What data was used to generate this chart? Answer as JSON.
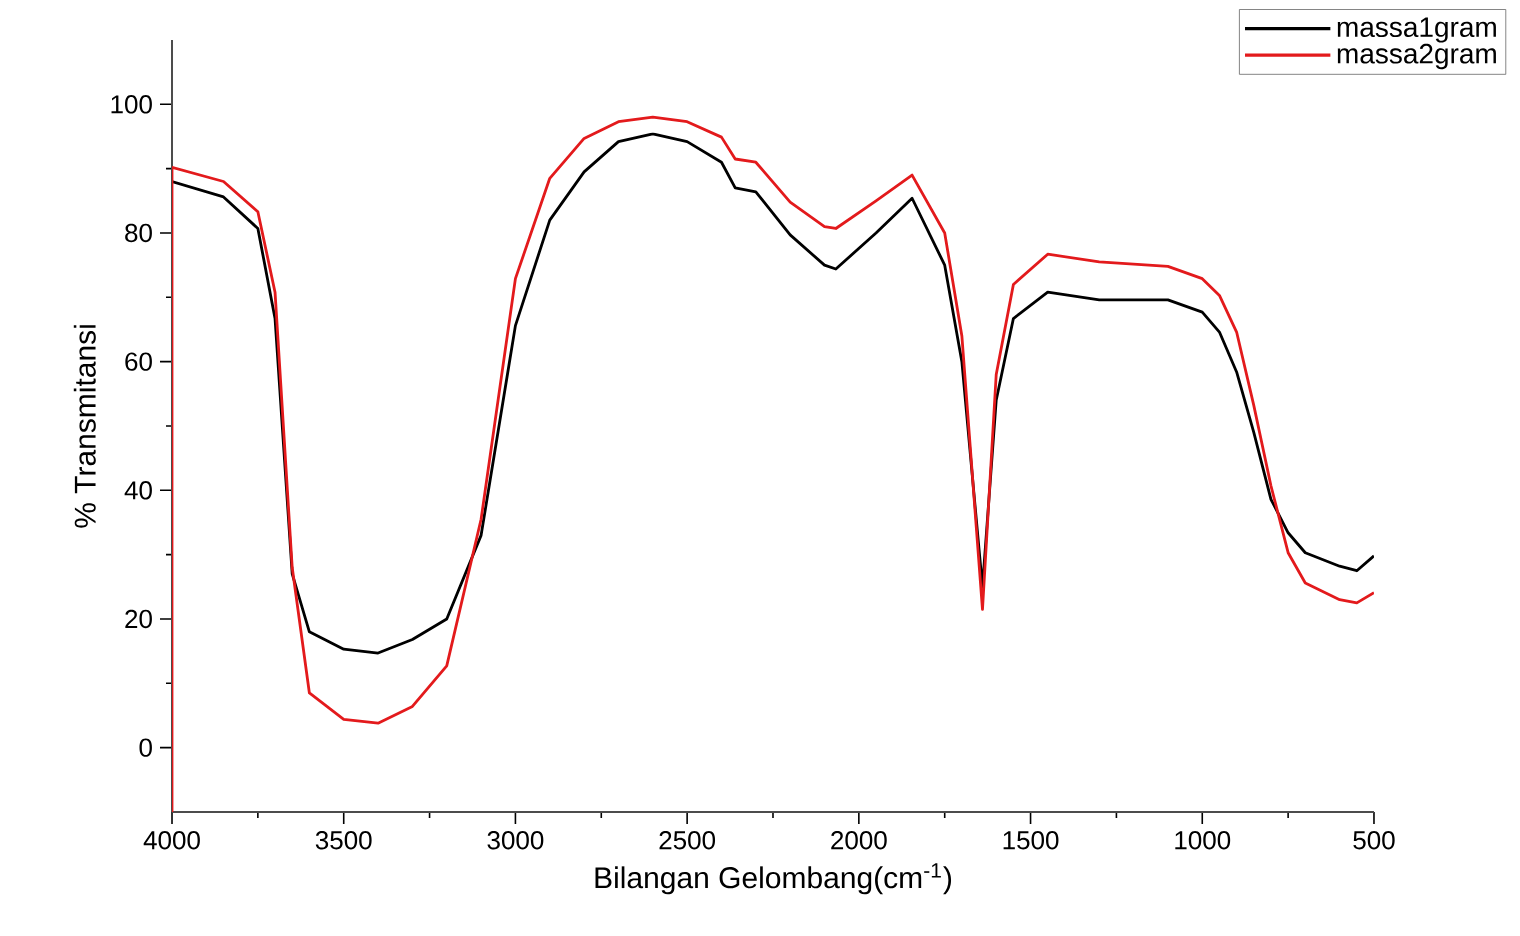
{
  "chart_data": {
    "type": "line",
    "xlabel": "Bilangan Gelombang(cm$^{-1}$)",
    "ylabel": "% Transmitansi",
    "xlim": [
      4000,
      500
    ],
    "xticks": [
      4000,
      3500,
      3000,
      2500,
      2000,
      1500,
      1000,
      500
    ],
    "ylim": [
      -10,
      110
    ],
    "yticks": [
      0,
      20,
      40,
      60,
      80,
      100
    ],
    "grid": false,
    "legend": "top right",
    "marker": "none",
    "line_style": "solid",
    "series": [
      {
        "name": "massa1gram",
        "color": "#000000",
        "x": [
          4000,
          3850,
          3750,
          3700,
          3650,
          3600,
          3500,
          3400,
          3300,
          3200,
          3100,
          3000,
          2900,
          2800,
          2700,
          2600,
          2500,
          2400,
          2360,
          2300,
          2200,
          2100,
          2067,
          1950,
          1845,
          1750,
          1700,
          1640,
          1600,
          1550,
          1450,
          1300,
          1100,
          1000,
          950,
          900,
          850,
          800,
          750,
          700,
          600,
          550,
          500
        ],
        "values": [
          88,
          85.6,
          80.7,
          66.7,
          27,
          18,
          15.3,
          14.7,
          16.8,
          20,
          33,
          65.6,
          82,
          89.5,
          94.2,
          95.4,
          94.2,
          91,
          87,
          86.4,
          79.7,
          75,
          74.4,
          80,
          85.4,
          75,
          60,
          25,
          54,
          66.7,
          70.8,
          69.6,
          69.6,
          67.7,
          64.6,
          58.4,
          49,
          38.6,
          33.4,
          30.3,
          28.2,
          27.5,
          29.8
        ]
      },
      {
        "name": "massa2gram",
        "color": "#e31a1c",
        "x": [
          4000,
          4000,
          3850,
          3750,
          3700,
          3650,
          3600,
          3500,
          3400,
          3300,
          3200,
          3100,
          3000,
          2900,
          2800,
          2700,
          2600,
          2500,
          2400,
          2360,
          2300,
          2200,
          2100,
          2067,
          1950,
          1845,
          1750,
          1700,
          1640,
          1600,
          1550,
          1450,
          1300,
          1100,
          1000,
          950,
          900,
          850,
          800,
          750,
          700,
          600,
          550,
          500
        ],
        "values": [
          -10,
          90.2,
          88,
          83.3,
          70.8,
          28,
          8.5,
          4.4,
          3.8,
          6.4,
          12.7,
          35.5,
          72.9,
          88.5,
          94.7,
          97.3,
          98,
          97.3,
          94.9,
          91.5,
          91,
          84.8,
          81,
          80.7,
          85,
          89,
          80,
          64,
          21.5,
          58,
          72,
          76.7,
          75.5,
          74.8,
          72.9,
          70.3,
          64.6,
          53.2,
          40.7,
          30.3,
          25.6,
          23,
          22.5,
          24.1
        ]
      }
    ]
  }
}
